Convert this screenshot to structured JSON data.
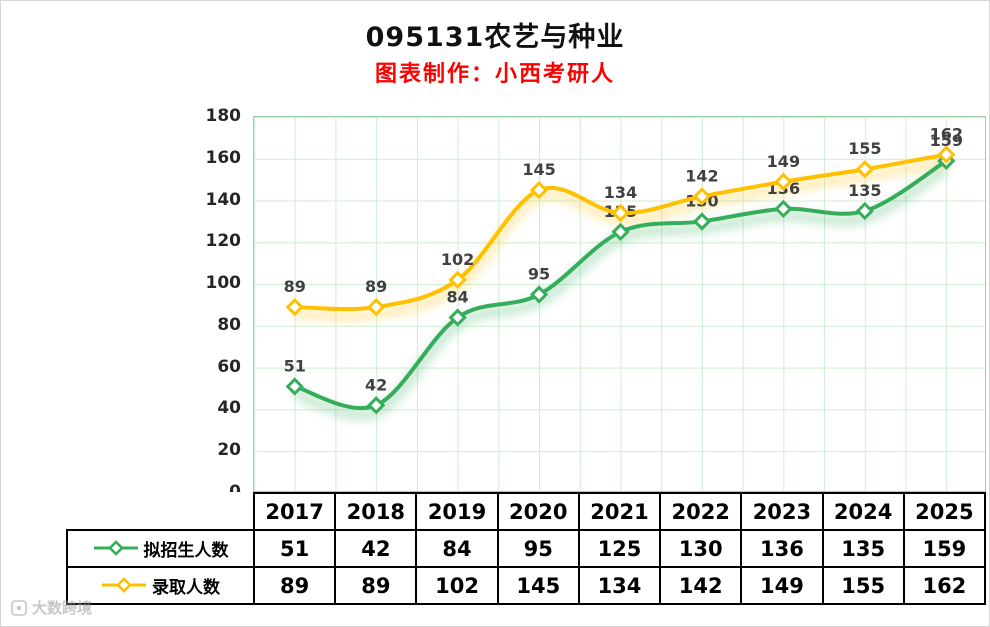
{
  "chart_data": {
    "type": "line",
    "title": "095131农艺与种业",
    "subtitle": "图表制作：小西考研人",
    "subtitle_color": "#fe0000",
    "categories": [
      "2017",
      "2018",
      "2019",
      "2020",
      "2021",
      "2022",
      "2023",
      "2024",
      "2025"
    ],
    "series": [
      {
        "name": "拟招生人数",
        "color": "#35ad5b",
        "values": [
          51,
          42,
          84,
          95,
          125,
          130,
          136,
          135,
          159
        ]
      },
      {
        "name": "录取人数",
        "color": "#ffc000",
        "values": [
          89,
          89,
          102,
          145,
          134,
          142,
          149,
          155,
          162
        ]
      }
    ],
    "ylim": [
      0,
      180
    ],
    "yticks": [
      0,
      20,
      40,
      60,
      80,
      100,
      120,
      140,
      160,
      180
    ],
    "grid": true,
    "gridline_color": "#cdeed3",
    "label_color": "#404040",
    "legend_position": "table-left",
    "marker": "diamond"
  },
  "watermark": {
    "text": "大数跨境"
  }
}
